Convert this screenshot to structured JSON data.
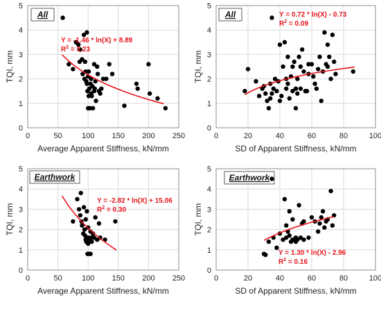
{
  "chart_data": [
    {
      "type": "scatter",
      "panel_label": "All",
      "xlabel": "Average Apparent Stiffness, kN/mm",
      "ylabel": "TQI, mm",
      "xlim": [
        0,
        250
      ],
      "ylim": [
        0,
        5
      ],
      "xticks": [
        "0",
        "50",
        "100",
        "150",
        "200",
        "250"
      ],
      "yticks": [
        "0",
        "1",
        "2",
        "3",
        "4",
        "5"
      ],
      "grid": true,
      "equation": "Y = -1.46 * ln(X) + 8.89",
      "r2_label": "R",
      "r2_exp": "2",
      "r2_value": " = 0.23",
      "fit": {
        "a": -1.46,
        "b": 8.89,
        "x_from": 57,
        "x_to": 225
      },
      "series": [
        {
          "x": [
            58,
            68,
            75,
            80,
            84,
            86,
            87,
            90,
            91,
            93,
            94,
            95,
            96,
            97,
            98,
            98,
            99,
            100,
            100,
            101,
            101,
            102,
            103,
            104,
            105,
            105,
            106,
            107,
            108,
            110,
            110,
            111,
            112,
            113,
            115,
            116,
            118,
            120,
            122,
            125,
            130,
            135,
            140,
            160,
            180,
            182,
            200,
            202,
            215,
            228
          ],
          "y": [
            4.5,
            2.6,
            2.4,
            3.5,
            3.4,
            2.7,
            3.2,
            2.8,
            2.2,
            3.8,
            2.0,
            2.7,
            2.3,
            1.9,
            1.8,
            3.9,
            1.5,
            2.1,
            0.8,
            1.3,
            2.3,
            1.6,
            0.8,
            1.8,
            2.0,
            1.4,
            1.3,
            1.7,
            0.8,
            2.6,
            1.5,
            1.6,
            1.9,
            1.1,
            2.5,
            2.2,
            1.5,
            1.4,
            1.6,
            2.0,
            2.0,
            2.6,
            2.2,
            0.9,
            1.8,
            1.6,
            2.6,
            1.4,
            1.2,
            0.8
          ]
        }
      ]
    },
    {
      "type": "scatter",
      "panel_label": "All",
      "xlabel": "SD of Apparent Stiffness, kN/mm",
      "ylabel": "TQI, mm",
      "xlim": [
        0,
        100
      ],
      "ylim": [
        0,
        5
      ],
      "xticks": [
        "0",
        "20",
        "40",
        "60",
        "80",
        "100"
      ],
      "yticks": [
        "0",
        "1",
        "2",
        "3",
        "4",
        "5"
      ],
      "grid": true,
      "equation": "Y = 0.72 * ln(X) - 0.73",
      "r2_label": "R",
      "r2_exp": "2",
      "r2_value": " = 0.09",
      "fit": {
        "a": 0.72,
        "b": -0.73,
        "x_from": 18,
        "x_to": 87
      },
      "series": [
        {
          "x": [
            18,
            20,
            25,
            27,
            29,
            30,
            31,
            32,
            33,
            34,
            34,
            35,
            35,
            36,
            37,
            38,
            39,
            40,
            40,
            41,
            42,
            43,
            44,
            44,
            45,
            45,
            46,
            47,
            48,
            48,
            49,
            50,
            50,
            51,
            51,
            52,
            53,
            53,
            54,
            55,
            56,
            57,
            58,
            58,
            60,
            61,
            62,
            63,
            64,
            65,
            66,
            67,
            68,
            69,
            70,
            70,
            71,
            72,
            73,
            74,
            75,
            86
          ],
          "y": [
            1.5,
            2.4,
            1.9,
            1.3,
            1.6,
            1.7,
            1.4,
            1.1,
            0.8,
            1.2,
            1.8,
            1.4,
            4.5,
            1.6,
            2.0,
            1.5,
            1.9,
            3.4,
            1.1,
            1.3,
            2.5,
            3.5,
            2.0,
            1.6,
            2.9,
            1.8,
            1.2,
            2.1,
            2.5,
            1.5,
            2.7,
            1.6,
            0.8,
            1.4,
            2.0,
            2.9,
            2.5,
            1.6,
            3.2,
            2.3,
            1.5,
            1.5,
            2.6,
            2.2,
            2.6,
            2.1,
            1.8,
            1.6,
            2.4,
            2.9,
            1.1,
            2.3,
            3.9,
            2.6,
            3.4,
            2.5,
            2.9,
            2.0,
            3.8,
            2.7,
            2.2,
            2.3
          ]
        }
      ]
    },
    {
      "type": "scatter",
      "panel_label": "Earthwork",
      "xlabel": "Average Apparent Stiffness, kN/mm",
      "ylabel": "TQI, mm",
      "xlim": [
        0,
        250
      ],
      "ylim": [
        0,
        5
      ],
      "xticks": [
        "0",
        "50",
        "100",
        "150",
        "200",
        "250"
      ],
      "yticks": [
        "0",
        "1",
        "2",
        "3",
        "4",
        "5"
      ],
      "grid": true,
      "equation": "Y = -2.82 * ln(X) + 15.06",
      "r2_label": "R",
      "r2_exp": "2",
      "r2_value": " = 0.30",
      "fit": {
        "a": -2.82,
        "b": 15.06,
        "x_from": 57,
        "x_to": 147
      },
      "series": [
        {
          "x": [
            75,
            82,
            85,
            87,
            88,
            89,
            90,
            92,
            93,
            94,
            95,
            96,
            96,
            97,
            98,
            98,
            99,
            100,
            100,
            101,
            102,
            103,
            104,
            104,
            105,
            106,
            108,
            110,
            112,
            115,
            118,
            120,
            128,
            145
          ],
          "y": [
            2.4,
            3.5,
            3.0,
            2.7,
            3.8,
            2.4,
            2.2,
            1.8,
            3.1,
            2.0,
            1.7,
            1.5,
            2.5,
            1.4,
            1.6,
            2.9,
            0.8,
            1.3,
            2.1,
            1.6,
            0.8,
            1.5,
            1.9,
            0.8,
            1.6,
            1.4,
            1.8,
            1.6,
            2.6,
            1.5,
            2.3,
            1.6,
            1.5,
            2.4
          ]
        }
      ]
    },
    {
      "type": "scatter",
      "panel_label": "Earthwork",
      "xlabel": "SD of Apparent Stiffness, kN/mm",
      "ylabel": "TQI, mm",
      "xlim": [
        0,
        100
      ],
      "ylim": [
        0,
        5
      ],
      "xticks": [
        "0",
        "20",
        "40",
        "60",
        "80",
        "100"
      ],
      "yticks": [
        "0",
        "1",
        "2",
        "3",
        "4",
        "5"
      ],
      "grid": true,
      "equation": "Y = 1.30 * ln(X) - 2.96",
      "r2_label": "R",
      "r2_exp": "2",
      "r2_value": " = 0.16",
      "fit": {
        "a": 1.3,
        "b": -2.96,
        "x_from": 30,
        "x_to": 74
      },
      "series": [
        {
          "x": [
            30,
            31,
            33,
            35,
            36,
            38,
            40,
            42,
            43,
            44,
            44,
            45,
            46,
            46,
            47,
            48,
            48,
            49,
            50,
            50,
            51,
            52,
            53,
            54,
            55,
            55,
            58,
            60,
            62,
            64,
            65,
            66,
            67,
            68,
            69,
            70,
            72,
            73,
            74
          ],
          "y": [
            0.8,
            0.75,
            1.4,
            4.5,
            1.6,
            1.1,
            1.8,
            1.5,
            3.5,
            1.6,
            2.2,
            1.9,
            2.9,
            1.7,
            1.4,
            1.5,
            2.5,
            1.5,
            1.6,
            1.4,
            1.5,
            3.2,
            1.6,
            2.3,
            1.5,
            2.4,
            1.6,
            2.6,
            2.4,
            1.9,
            2.3,
            2.6,
            2.9,
            2.1,
            2.4,
            2.5,
            3.9,
            2.2,
            2.7
          ]
        }
      ]
    }
  ]
}
